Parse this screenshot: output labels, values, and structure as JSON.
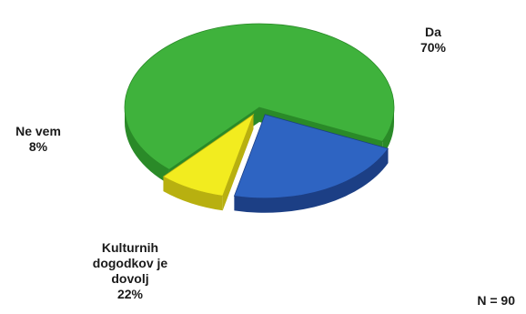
{
  "chart_data": {
    "type": "pie",
    "style": "3d-exploded",
    "slices": [
      {
        "label": "Da",
        "value": 70,
        "percent_label": "70%",
        "color": "#3fb23c",
        "side_color": "#2a8a28"
      },
      {
        "label": "Kulturnih dogodkov je dovolj",
        "label_lines": [
          "Kulturnih",
          "dogodkov je",
          "dovolj"
        ],
        "value": 22,
        "percent_label": "22%",
        "color": "#2e64c2",
        "side_color": "#1c3f85"
      },
      {
        "label": "Ne vem",
        "value": 8,
        "percent_label": "8%",
        "color": "#f2ec1f",
        "side_color": "#b8b010"
      }
    ],
    "note": "N = 90"
  }
}
